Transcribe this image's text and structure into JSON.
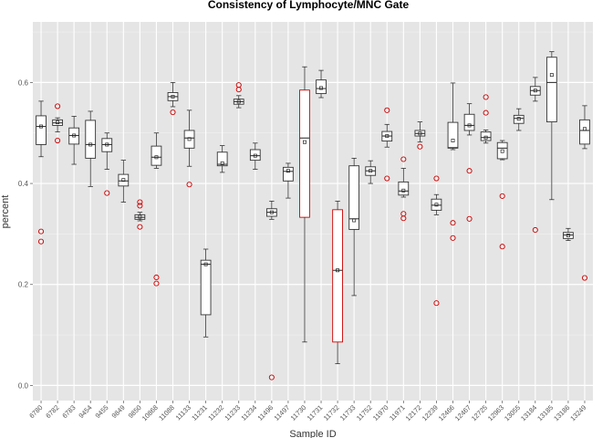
{
  "chart_data": {
    "type": "boxplot",
    "title": "Consistency of Lymphocyte/MNC Gate",
    "xlabel": "Sample ID",
    "ylabel": "percent",
    "ylim": [
      -0.03,
      0.72
    ],
    "yticks": [
      0.0,
      0.2,
      0.4,
      0.6
    ],
    "ytick_labels": [
      "0.0",
      "0.2",
      "0.4",
      "0.6"
    ],
    "grid": true,
    "background_color": "#e5e5e5",
    "box_color": "#333333",
    "highlight_color": "#cc0000",
    "outlier_color": "#cc0000",
    "series": [
      {
        "label": "6780",
        "min": 0.453,
        "q1": 0.477,
        "median": 0.513,
        "q3": 0.534,
        "max": 0.563,
        "mean": 0.513,
        "outliers": [
          0.305,
          0.285
        ]
      },
      {
        "label": "6782",
        "min": 0.502,
        "q1": 0.515,
        "median": 0.52,
        "q3": 0.526,
        "max": 0.53,
        "mean": 0.521,
        "outliers": [
          0.553,
          0.485
        ]
      },
      {
        "label": "6783",
        "min": 0.438,
        "q1": 0.478,
        "median": 0.495,
        "q3": 0.51,
        "max": 0.533,
        "mean": 0.495,
        "outliers": []
      },
      {
        "label": "9454",
        "min": 0.394,
        "q1": 0.45,
        "median": 0.477,
        "q3": 0.525,
        "max": 0.543,
        "mean": 0.477,
        "outliers": []
      },
      {
        "label": "9455",
        "min": 0.428,
        "q1": 0.463,
        "median": 0.477,
        "q3": 0.489,
        "max": 0.5,
        "mean": 0.477,
        "outliers": [
          0.381
        ]
      },
      {
        "label": "9849",
        "min": 0.363,
        "q1": 0.395,
        "median": 0.405,
        "q3": 0.418,
        "max": 0.446,
        "mean": 0.407,
        "outliers": []
      },
      {
        "label": "9850",
        "min": 0.326,
        "q1": 0.329,
        "median": 0.333,
        "q3": 0.338,
        "max": 0.343,
        "mean": 0.334,
        "outliers": [
          0.363,
          0.356,
          0.314
        ]
      },
      {
        "label": "10868",
        "min": 0.43,
        "q1": 0.436,
        "median": 0.452,
        "q3": 0.474,
        "max": 0.5,
        "mean": 0.452,
        "outliers": [
          0.214,
          0.202
        ]
      },
      {
        "label": "11088",
        "min": 0.552,
        "q1": 0.564,
        "median": 0.572,
        "q3": 0.58,
        "max": 0.6,
        "mean": 0.572,
        "outliers": [
          0.541
        ]
      },
      {
        "label": "11133",
        "min": 0.434,
        "q1": 0.47,
        "median": 0.49,
        "q3": 0.505,
        "max": 0.545,
        "mean": 0.488,
        "outliers": [
          0.398
        ]
      },
      {
        "label": "11231",
        "min": 0.096,
        "q1": 0.14,
        "median": 0.24,
        "q3": 0.248,
        "max": 0.27,
        "mean": 0.24,
        "outliers": []
      },
      {
        "label": "11232",
        "min": 0.422,
        "q1": 0.435,
        "median": 0.438,
        "q3": 0.462,
        "max": 0.475,
        "mean": 0.44,
        "outliers": []
      },
      {
        "label": "11233",
        "min": 0.55,
        "q1": 0.557,
        "median": 0.562,
        "q3": 0.567,
        "max": 0.574,
        "mean": 0.562,
        "outliers": [
          0.595,
          0.586
        ]
      },
      {
        "label": "11234",
        "min": 0.428,
        "q1": 0.446,
        "median": 0.455,
        "q3": 0.467,
        "max": 0.48,
        "mean": 0.455,
        "outliers": []
      },
      {
        "label": "11496",
        "min": 0.329,
        "q1": 0.335,
        "median": 0.343,
        "q3": 0.35,
        "max": 0.365,
        "mean": 0.343,
        "outliers": [
          0.016
        ]
      },
      {
        "label": "11497",
        "min": 0.371,
        "q1": 0.405,
        "median": 0.424,
        "q3": 0.432,
        "max": 0.44,
        "mean": 0.425,
        "outliers": []
      },
      {
        "label": "11730",
        "min": 0.086,
        "q1": 0.333,
        "median": 0.49,
        "q3": 0.585,
        "max": 0.631,
        "mean": 0.482,
        "highlight": true,
        "outliers": []
      },
      {
        "label": "11731",
        "min": 0.57,
        "q1": 0.578,
        "median": 0.588,
        "q3": 0.605,
        "max": 0.624,
        "mean": 0.589,
        "outliers": []
      },
      {
        "label": "11732",
        "min": 0.043,
        "q1": 0.086,
        "median": 0.228,
        "q3": 0.348,
        "max": 0.365,
        "mean": 0.228,
        "highlight": true,
        "outliers": []
      },
      {
        "label": "11733",
        "min": 0.178,
        "q1": 0.309,
        "median": 0.33,
        "q3": 0.435,
        "max": 0.45,
        "mean": 0.327,
        "outliers": []
      },
      {
        "label": "11752",
        "min": 0.4,
        "q1": 0.416,
        "median": 0.425,
        "q3": 0.433,
        "max": 0.445,
        "mean": 0.425,
        "outliers": []
      },
      {
        "label": "11970",
        "min": 0.472,
        "q1": 0.484,
        "median": 0.494,
        "q3": 0.503,
        "max": 0.517,
        "mean": 0.494,
        "outliers": [
          0.545,
          0.41
        ]
      },
      {
        "label": "11971",
        "min": 0.373,
        "q1": 0.377,
        "median": 0.385,
        "q3": 0.403,
        "max": 0.43,
        "mean": 0.386,
        "outliers": [
          0.448,
          0.34,
          0.331
        ]
      },
      {
        "label": "12172",
        "min": 0.482,
        "q1": 0.494,
        "median": 0.499,
        "q3": 0.505,
        "max": 0.522,
        "mean": 0.499,
        "outliers": [
          0.473
        ]
      },
      {
        "label": "12239",
        "min": 0.338,
        "q1": 0.347,
        "median": 0.357,
        "q3": 0.369,
        "max": 0.378,
        "mean": 0.358,
        "outliers": [
          0.41,
          0.163
        ]
      },
      {
        "label": "12466",
        "min": 0.467,
        "q1": 0.47,
        "median": 0.471,
        "q3": 0.521,
        "max": 0.599,
        "mean": 0.485,
        "outliers": [
          0.322,
          0.292
        ]
      },
      {
        "label": "12467",
        "min": 0.496,
        "q1": 0.505,
        "median": 0.515,
        "q3": 0.537,
        "max": 0.558,
        "mean": 0.515,
        "outliers": [
          0.425,
          0.33
        ]
      },
      {
        "label": "12725",
        "min": 0.48,
        "q1": 0.485,
        "median": 0.491,
        "q3": 0.502,
        "max": 0.506,
        "mean": 0.491,
        "outliers": [
          0.571,
          0.54
        ]
      },
      {
        "label": "12963",
        "min": 0.447,
        "q1": 0.449,
        "median": 0.47,
        "q3": 0.481,
        "max": 0.485,
        "mean": 0.464,
        "outliers": [
          0.375,
          0.275
        ]
      },
      {
        "label": "13055",
        "min": 0.505,
        "q1": 0.519,
        "median": 0.529,
        "q3": 0.535,
        "max": 0.548,
        "mean": 0.528,
        "outliers": []
      },
      {
        "label": "13184",
        "min": 0.563,
        "q1": 0.575,
        "median": 0.584,
        "q3": 0.592,
        "max": 0.61,
        "mean": 0.584,
        "outliers": [
          0.308
        ]
      },
      {
        "label": "13185",
        "min": 0.368,
        "q1": 0.522,
        "median": 0.6,
        "q3": 0.65,
        "max": 0.661,
        "mean": 0.615,
        "outliers": []
      },
      {
        "label": "13186",
        "min": 0.287,
        "q1": 0.291,
        "median": 0.298,
        "q3": 0.303,
        "max": 0.311,
        "mean": 0.297,
        "outliers": []
      },
      {
        "label": "13249",
        "min": 0.469,
        "q1": 0.478,
        "median": 0.505,
        "q3": 0.526,
        "max": 0.554,
        "mean": 0.508,
        "outliers": [
          0.213
        ]
      }
    ]
  }
}
